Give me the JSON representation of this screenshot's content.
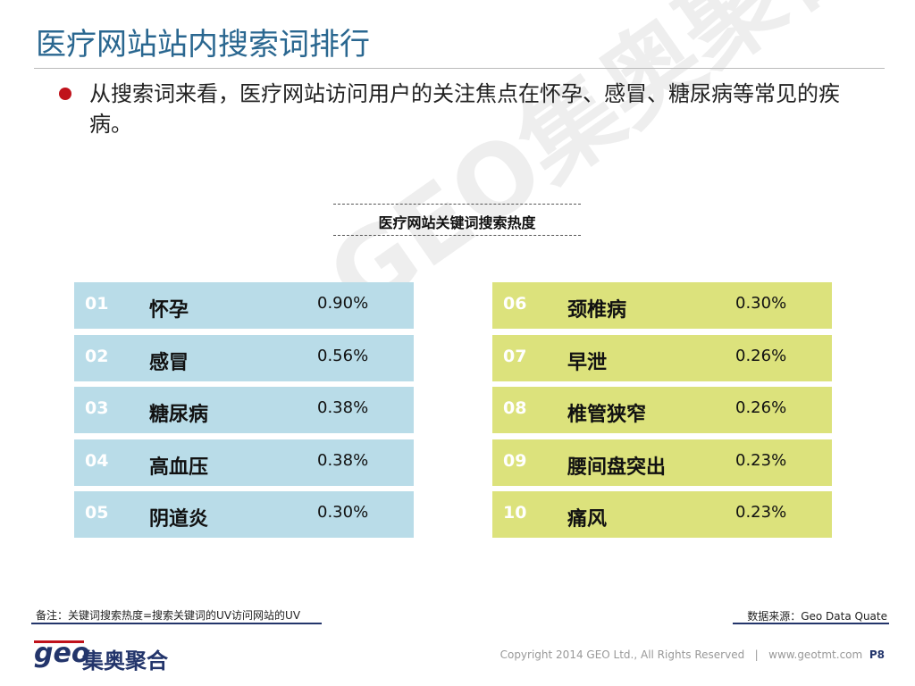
{
  "header": {
    "title": "医疗网站站内搜索词排行"
  },
  "bullet": "从搜索词来看，医疗网站访问用户的关注焦点在怀孕、感冒、糖尿病等常见的疾病。",
  "table": {
    "title": "医疗网站关键词搜索热度",
    "rows": [
      [
        "01",
        "怀孕",
        "0.90%"
      ],
      [
        "02",
        "感冒",
        "0.56%"
      ],
      [
        "03",
        "糖尿病",
        "0.38%"
      ],
      [
        "04",
        "高血压",
        "0.38%"
      ],
      [
        "05",
        "阴道炎",
        "0.30%"
      ],
      [
        "06",
        "颈椎病",
        "0.30%"
      ],
      [
        "07",
        "早泄",
        "0.26%"
      ],
      [
        "08",
        "椎管狭窄",
        "0.26%"
      ],
      [
        "09",
        "腰间盘突出",
        "0.23%"
      ],
      [
        "10",
        "痛风",
        "0.23%"
      ]
    ]
  },
  "watermark": "GEO集奥聚合",
  "footer": {
    "note": "备注：关键词搜索热度=搜索关键词的UV访问网站的UV",
    "source": "数据来源：Geo Data  Quate",
    "logo_mark": "geo",
    "logo_text": "集奥聚合",
    "copyright": "Copyright 2014 GEO Ltd., All Rights Reserved",
    "separator": "|",
    "website": "www.geotmt.com",
    "page": "P8"
  }
}
